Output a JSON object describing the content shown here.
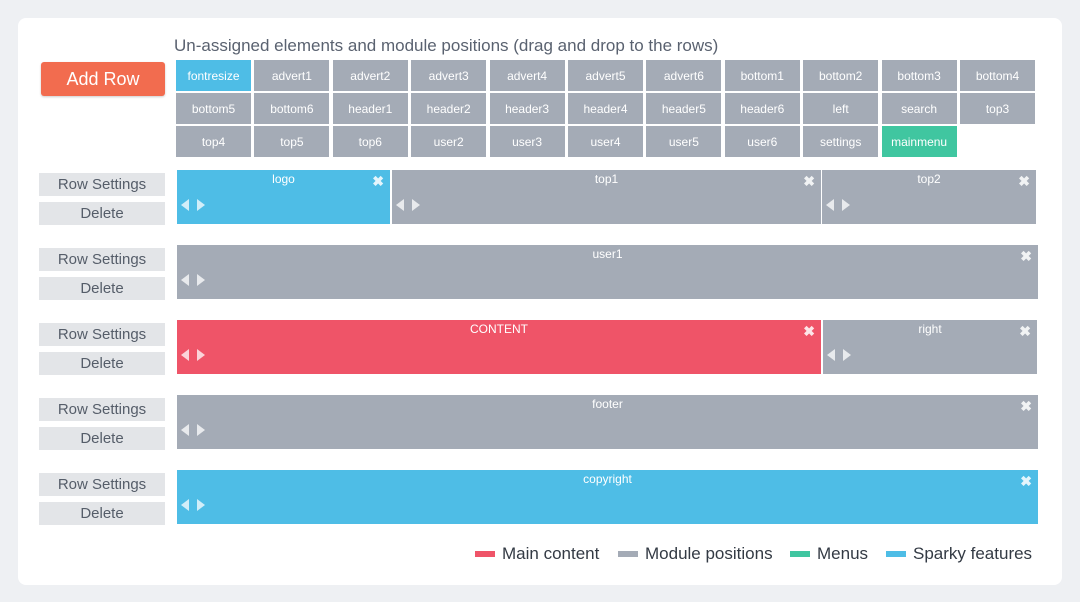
{
  "header": {
    "add_row_label": "Add Row",
    "title": "Un-assigned elements and module positions (drag and drop to the rows)"
  },
  "colors": {
    "main_content": "#ef5468",
    "module_positions": "#a4abb6",
    "menus": "#40c6a0",
    "sparky_features": "#4ebde6",
    "add_row": "#f26c4f"
  },
  "unassigned": [
    {
      "label": "fontresize",
      "kind": "sparky"
    },
    {
      "label": "advert1",
      "kind": "module"
    },
    {
      "label": "advert2",
      "kind": "module"
    },
    {
      "label": "advert3",
      "kind": "module"
    },
    {
      "label": "advert4",
      "kind": "module"
    },
    {
      "label": "advert5",
      "kind": "module"
    },
    {
      "label": "advert6",
      "kind": "module"
    },
    {
      "label": "bottom1",
      "kind": "module"
    },
    {
      "label": "bottom2",
      "kind": "module"
    },
    {
      "label": "bottom3",
      "kind": "module"
    },
    {
      "label": "bottom4",
      "kind": "module"
    },
    {
      "label": "bottom5",
      "kind": "module"
    },
    {
      "label": "bottom6",
      "kind": "module"
    },
    {
      "label": "header1",
      "kind": "module"
    },
    {
      "label": "header2",
      "kind": "module"
    },
    {
      "label": "header3",
      "kind": "module"
    },
    {
      "label": "header4",
      "kind": "module"
    },
    {
      "label": "header5",
      "kind": "module"
    },
    {
      "label": "header6",
      "kind": "module"
    },
    {
      "label": "left",
      "kind": "module"
    },
    {
      "label": "search",
      "kind": "module"
    },
    {
      "label": "top3",
      "kind": "module"
    },
    {
      "label": "top4",
      "kind": "module"
    },
    {
      "label": "top5",
      "kind": "module"
    },
    {
      "label": "top6",
      "kind": "module"
    },
    {
      "label": "user2",
      "kind": "module"
    },
    {
      "label": "user3",
      "kind": "module"
    },
    {
      "label": "user4",
      "kind": "module"
    },
    {
      "label": "user5",
      "kind": "module"
    },
    {
      "label": "user6",
      "kind": "module"
    },
    {
      "label": "settings",
      "kind": "module"
    },
    {
      "label": "mainmenu",
      "kind": "menu"
    }
  ],
  "row_settings_label": "Row Settings",
  "delete_label": "Delete",
  "close_icon": "close-icon",
  "rows": [
    {
      "blocks": [
        {
          "label": "logo",
          "kind": "sparky"
        },
        {
          "label": "top1",
          "kind": "module"
        },
        {
          "label": "top2",
          "kind": "module"
        }
      ]
    },
    {
      "blocks": [
        {
          "label": "user1",
          "kind": "module"
        }
      ]
    },
    {
      "blocks": [
        {
          "label": "CONTENT",
          "kind": "main"
        },
        {
          "label": "right",
          "kind": "module"
        }
      ]
    },
    {
      "blocks": [
        {
          "label": "footer",
          "kind": "module"
        }
      ]
    },
    {
      "blocks": [
        {
          "label": "copyright",
          "kind": "sparky"
        }
      ]
    }
  ],
  "legend": [
    {
      "label": "Main content",
      "kind": "main"
    },
    {
      "label": "Module positions",
      "kind": "module"
    },
    {
      "label": "Menus",
      "kind": "menu"
    },
    {
      "label": "Sparky features",
      "kind": "sparky"
    }
  ]
}
